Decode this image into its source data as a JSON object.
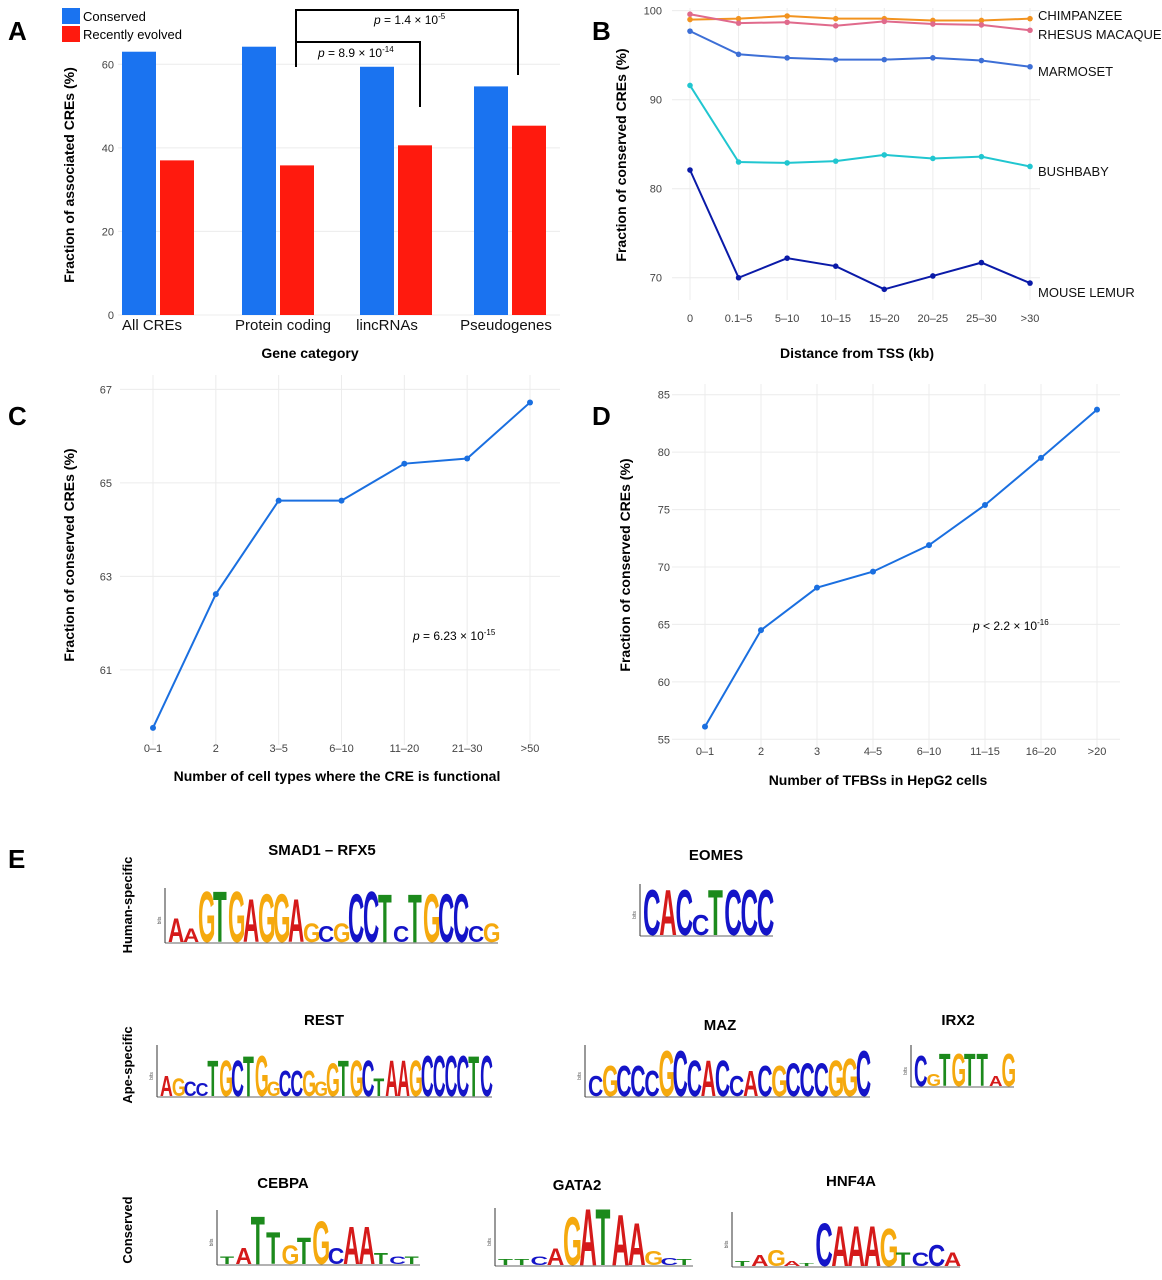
{
  "panels": {
    "A": "A",
    "B": "B",
    "C": "C",
    "D": "D",
    "E": "E"
  },
  "colors": {
    "conserved": "#1a73f0",
    "recent": "#ff1a0e",
    "chimpanzee": "#f2931f",
    "rhesus": "#e06a8c",
    "marmoset": "#3d6fd6",
    "bushbaby": "#20c6d0",
    "mouse_lemur": "#0a1aa8",
    "lineCD": "#1a6fe0",
    "grid": "#ececec"
  },
  "pvals_A": [
    {
      "pre": "p",
      "mid": " = 8.9 × 10",
      "exp": "-14"
    },
    {
      "pre": "p",
      "mid": " = 1.4 × 10",
      "exp": "-5"
    }
  ],
  "pval_C": {
    "pre": "p",
    "mid": " = 6.23 × 10",
    "exp": "-15"
  },
  "pval_D": {
    "pre": "p",
    "mid": " < 2.2 × 10",
    "exp": "-16"
  },
  "chart_data": [
    {
      "panel": "A",
      "type": "bar",
      "title": "",
      "xlabel": "Gene category",
      "ylabel": "Fraction of associated CREs (%)",
      "categories": [
        "All CREs",
        "Protein coding",
        "lincRNAs",
        "Pseudogenes"
      ],
      "series": [
        {
          "name": "Conserved",
          "values": [
            63,
            64.2,
            59.4,
            54.7
          ]
        },
        {
          "name": "Recently evolved",
          "values": [
            37,
            35.8,
            40.6,
            45.3
          ]
        }
      ],
      "yticks": [
        0,
        20,
        40,
        60
      ],
      "ylim": [
        0,
        67
      ],
      "legend": "top-left"
    },
    {
      "panel": "B",
      "type": "line",
      "xlabel": "Distance from TSS (kb)",
      "ylabel": "Fraction of conserved CREs (%)",
      "categories": [
        "0",
        "0.1–5",
        "5–10",
        "10–15",
        "15–20",
        "20–25",
        "25–30",
        ">30"
      ],
      "series": [
        {
          "name": "CHIMPANZEE",
          "values": [
            99.0,
            99.1,
            99.4,
            99.1,
            99.1,
            98.9,
            98.9,
            99.1
          ]
        },
        {
          "name": "RHESUS MACAQUE",
          "values": [
            99.6,
            98.6,
            98.7,
            98.3,
            98.8,
            98.5,
            98.4,
            97.8
          ]
        },
        {
          "name": "MARMOSET",
          "values": [
            97.7,
            95.1,
            94.7,
            94.5,
            94.5,
            94.7,
            94.4,
            93.7
          ]
        },
        {
          "name": "BUSHBABY",
          "values": [
            91.6,
            83.0,
            82.9,
            83.1,
            83.8,
            83.4,
            83.6,
            82.5
          ]
        },
        {
          "name": "MOUSE LEMUR",
          "values": [
            82.1,
            70.0,
            72.2,
            71.3,
            68.7,
            70.2,
            71.7,
            69.4
          ]
        }
      ],
      "yticks": [
        70,
        80,
        90,
        100
      ],
      "ylim": [
        67.5,
        100.3
      ]
    },
    {
      "panel": "C",
      "type": "line",
      "xlabel": "Number of cell types where the CRE is functional",
      "ylabel": "Fraction of conserved CREs (%)",
      "categories": [
        "0–1",
        "2",
        "3–5",
        "6–10",
        "11–20",
        "21–30",
        ">50"
      ],
      "values": [
        59.76,
        62.62,
        64.62,
        64.62,
        65.41,
        65.52,
        66.72
      ],
      "yticks": [
        61,
        63,
        65,
        67
      ],
      "ylim": [
        59.5,
        67.2
      ]
    },
    {
      "panel": "D",
      "type": "line",
      "xlabel": "Number of TFBSs in HepG2 cells",
      "ylabel": "Fraction of conserved CREs (%)",
      "categories": [
        "0–1",
        "2",
        "3",
        "4–5",
        "6–10",
        "11–15",
        "16–20",
        ">20"
      ],
      "values": [
        56.1,
        64.5,
        68.2,
        69.6,
        71.9,
        75.4,
        79.5,
        83.7
      ],
      "yticks": [
        55,
        60,
        65,
        70,
        75,
        80,
        85
      ],
      "ylim": [
        54.5,
        85.5
      ]
    }
  ],
  "motifs": {
    "rows": [
      "Human-specific",
      "Ape-specific",
      "Conserved"
    ],
    "axis_label": "bits",
    "items": [
      {
        "name": "SMAD1 – RFX5",
        "seq": "AAGTGAGGAGCGCCTCTGCCCG"
      },
      {
        "name": "EOMES",
        "seq": "CACCTCCC"
      },
      {
        "name": "REST",
        "seq": "AGCCTGCTGGCCGGGTGCTAAGCCCCTC"
      },
      {
        "name": "MAZ",
        "seq": "CGCCCGCCACCACGCCCGGC"
      },
      {
        "name": "IRX2",
        "seq": "CGTGTTAG"
      },
      {
        "name": "CEBPA",
        "seq": "TATTGTGCAATCT"
      },
      {
        "name": "GATA2",
        "seq": "TTCAGATAAGCT"
      },
      {
        "name": "HNF4A",
        "seq": "TAGATCAAAGTCCA"
      }
    ]
  }
}
